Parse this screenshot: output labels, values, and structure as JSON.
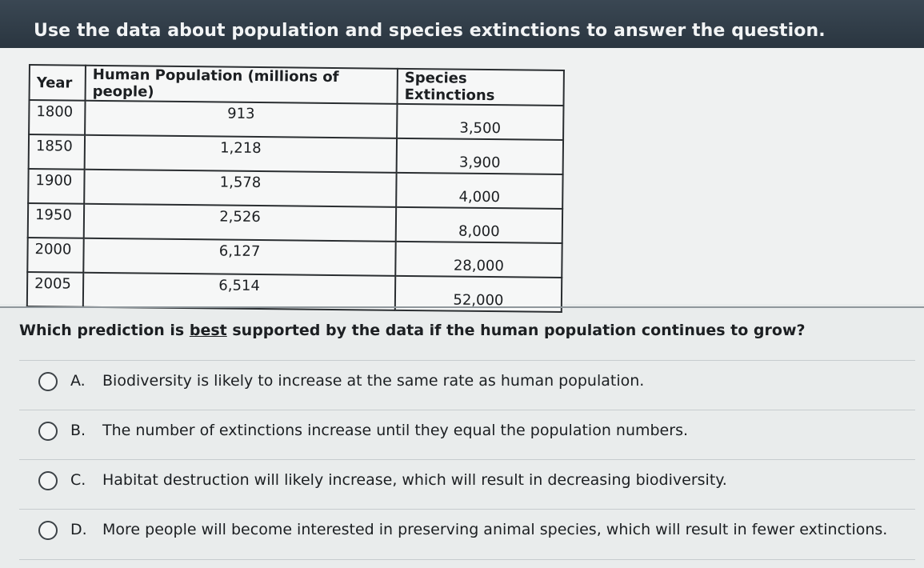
{
  "header": {
    "title": "Use the data about population and species extinctions to answer the question."
  },
  "table": {
    "columns": [
      "Year",
      "Human Population (millions of people)",
      "Species Extinctions"
    ],
    "rows": [
      {
        "year": "1800",
        "population": "913",
        "extinctions": "3,500"
      },
      {
        "year": "1850",
        "population": "1,218",
        "extinctions": "3,900"
      },
      {
        "year": "1900",
        "population": "1,578",
        "extinctions": "4,000"
      },
      {
        "year": "1950",
        "population": "2,526",
        "extinctions": "8,000"
      },
      {
        "year": "2000",
        "population": "6,127",
        "extinctions": "28,000"
      },
      {
        "year": "2005",
        "population": "6,514",
        "extinctions": "52,000"
      }
    ]
  },
  "question": {
    "before": "Which prediction is ",
    "emphasis": "best",
    "after": " supported by the data if the human population continues to grow?"
  },
  "options": [
    {
      "letter": "A.",
      "text": "Biodiversity is likely to increase at the same rate as human population."
    },
    {
      "letter": "B.",
      "text": "The number of extinctions increase until they equal the population numbers."
    },
    {
      "letter": "C.",
      "text": "Habitat destruction will likely increase, which will result in decreasing biodiversity."
    },
    {
      "letter": "D.",
      "text": "More people will become interested in preserving animal species, which will result in fewer extinctions."
    }
  ]
}
